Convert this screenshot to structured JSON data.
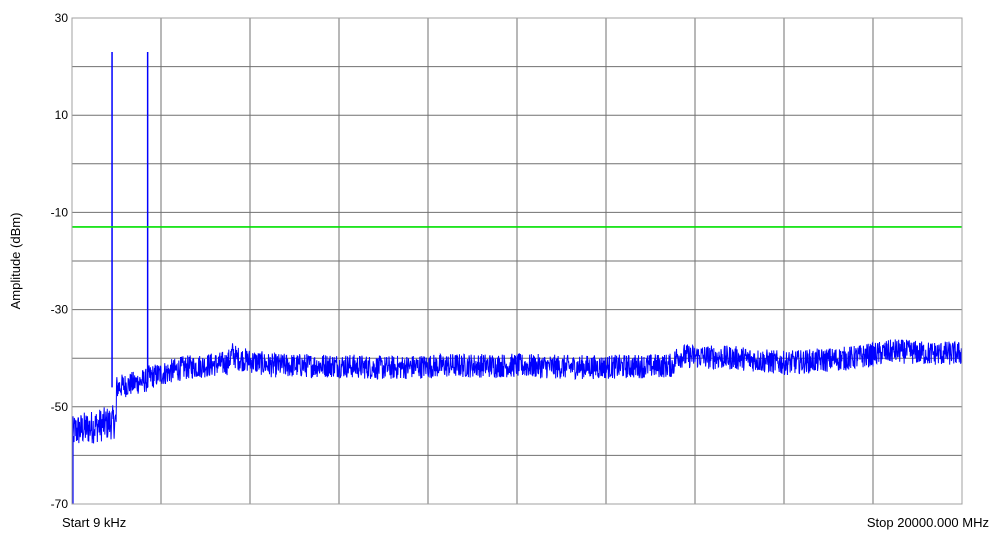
{
  "chart_data": {
    "type": "line",
    "title": "",
    "ylabel": "Amplitude (dBm)",
    "xlabel": "",
    "x_start_label": "Start 9 kHz",
    "x_stop_label": "Stop 20000.000 MHz",
    "x_unit": "MHz",
    "xlim": [
      0.009,
      20000
    ],
    "ylim": [
      -70,
      30
    ],
    "y_ticks": [
      {
        "value": 30,
        "label": "30"
      },
      {
        "value": 10,
        "label": "10"
      },
      {
        "value": -10,
        "label": "-10"
      },
      {
        "value": -30,
        "label": "-30"
      },
      {
        "value": -50,
        "label": "-50"
      },
      {
        "value": -70,
        "label": "-70"
      }
    ],
    "grid": true,
    "x_grid_divisions": 10,
    "y_grid_divisions": 10,
    "limit_line": {
      "value": -13,
      "color": "#00e000"
    },
    "series": [
      {
        "color": "#0000ff",
        "noise_band": 2.5,
        "x": [
          0.009,
          40,
          1000,
          1001,
          1700,
          1701,
          2500,
          3500,
          3600,
          3700,
          4500,
          6000,
          7000,
          8500,
          9000,
          10000,
          11000,
          12000,
          13500,
          13600,
          15000,
          16000,
          17500,
          18500,
          19200,
          20000
        ],
        "y": [
          -56,
          -55,
          -53,
          -46,
          -44.5,
          -44,
          -42,
          -41,
          -39,
          -40,
          -41.5,
          -41.5,
          -42,
          -41.5,
          -41.5,
          -41.5,
          -41.8,
          -41.8,
          -41.5,
          -39.5,
          -40,
          -41,
          -40,
          -38.5,
          -39,
          -39
        ]
      }
    ],
    "spikes": [
      {
        "x": 900,
        "y": 23
      },
      {
        "x": 1700,
        "y": 23
      }
    ],
    "colors": {
      "grid": "#707070",
      "frame": "#a0a0a0",
      "trace": "#0000ff",
      "limit": "#00e000"
    }
  }
}
